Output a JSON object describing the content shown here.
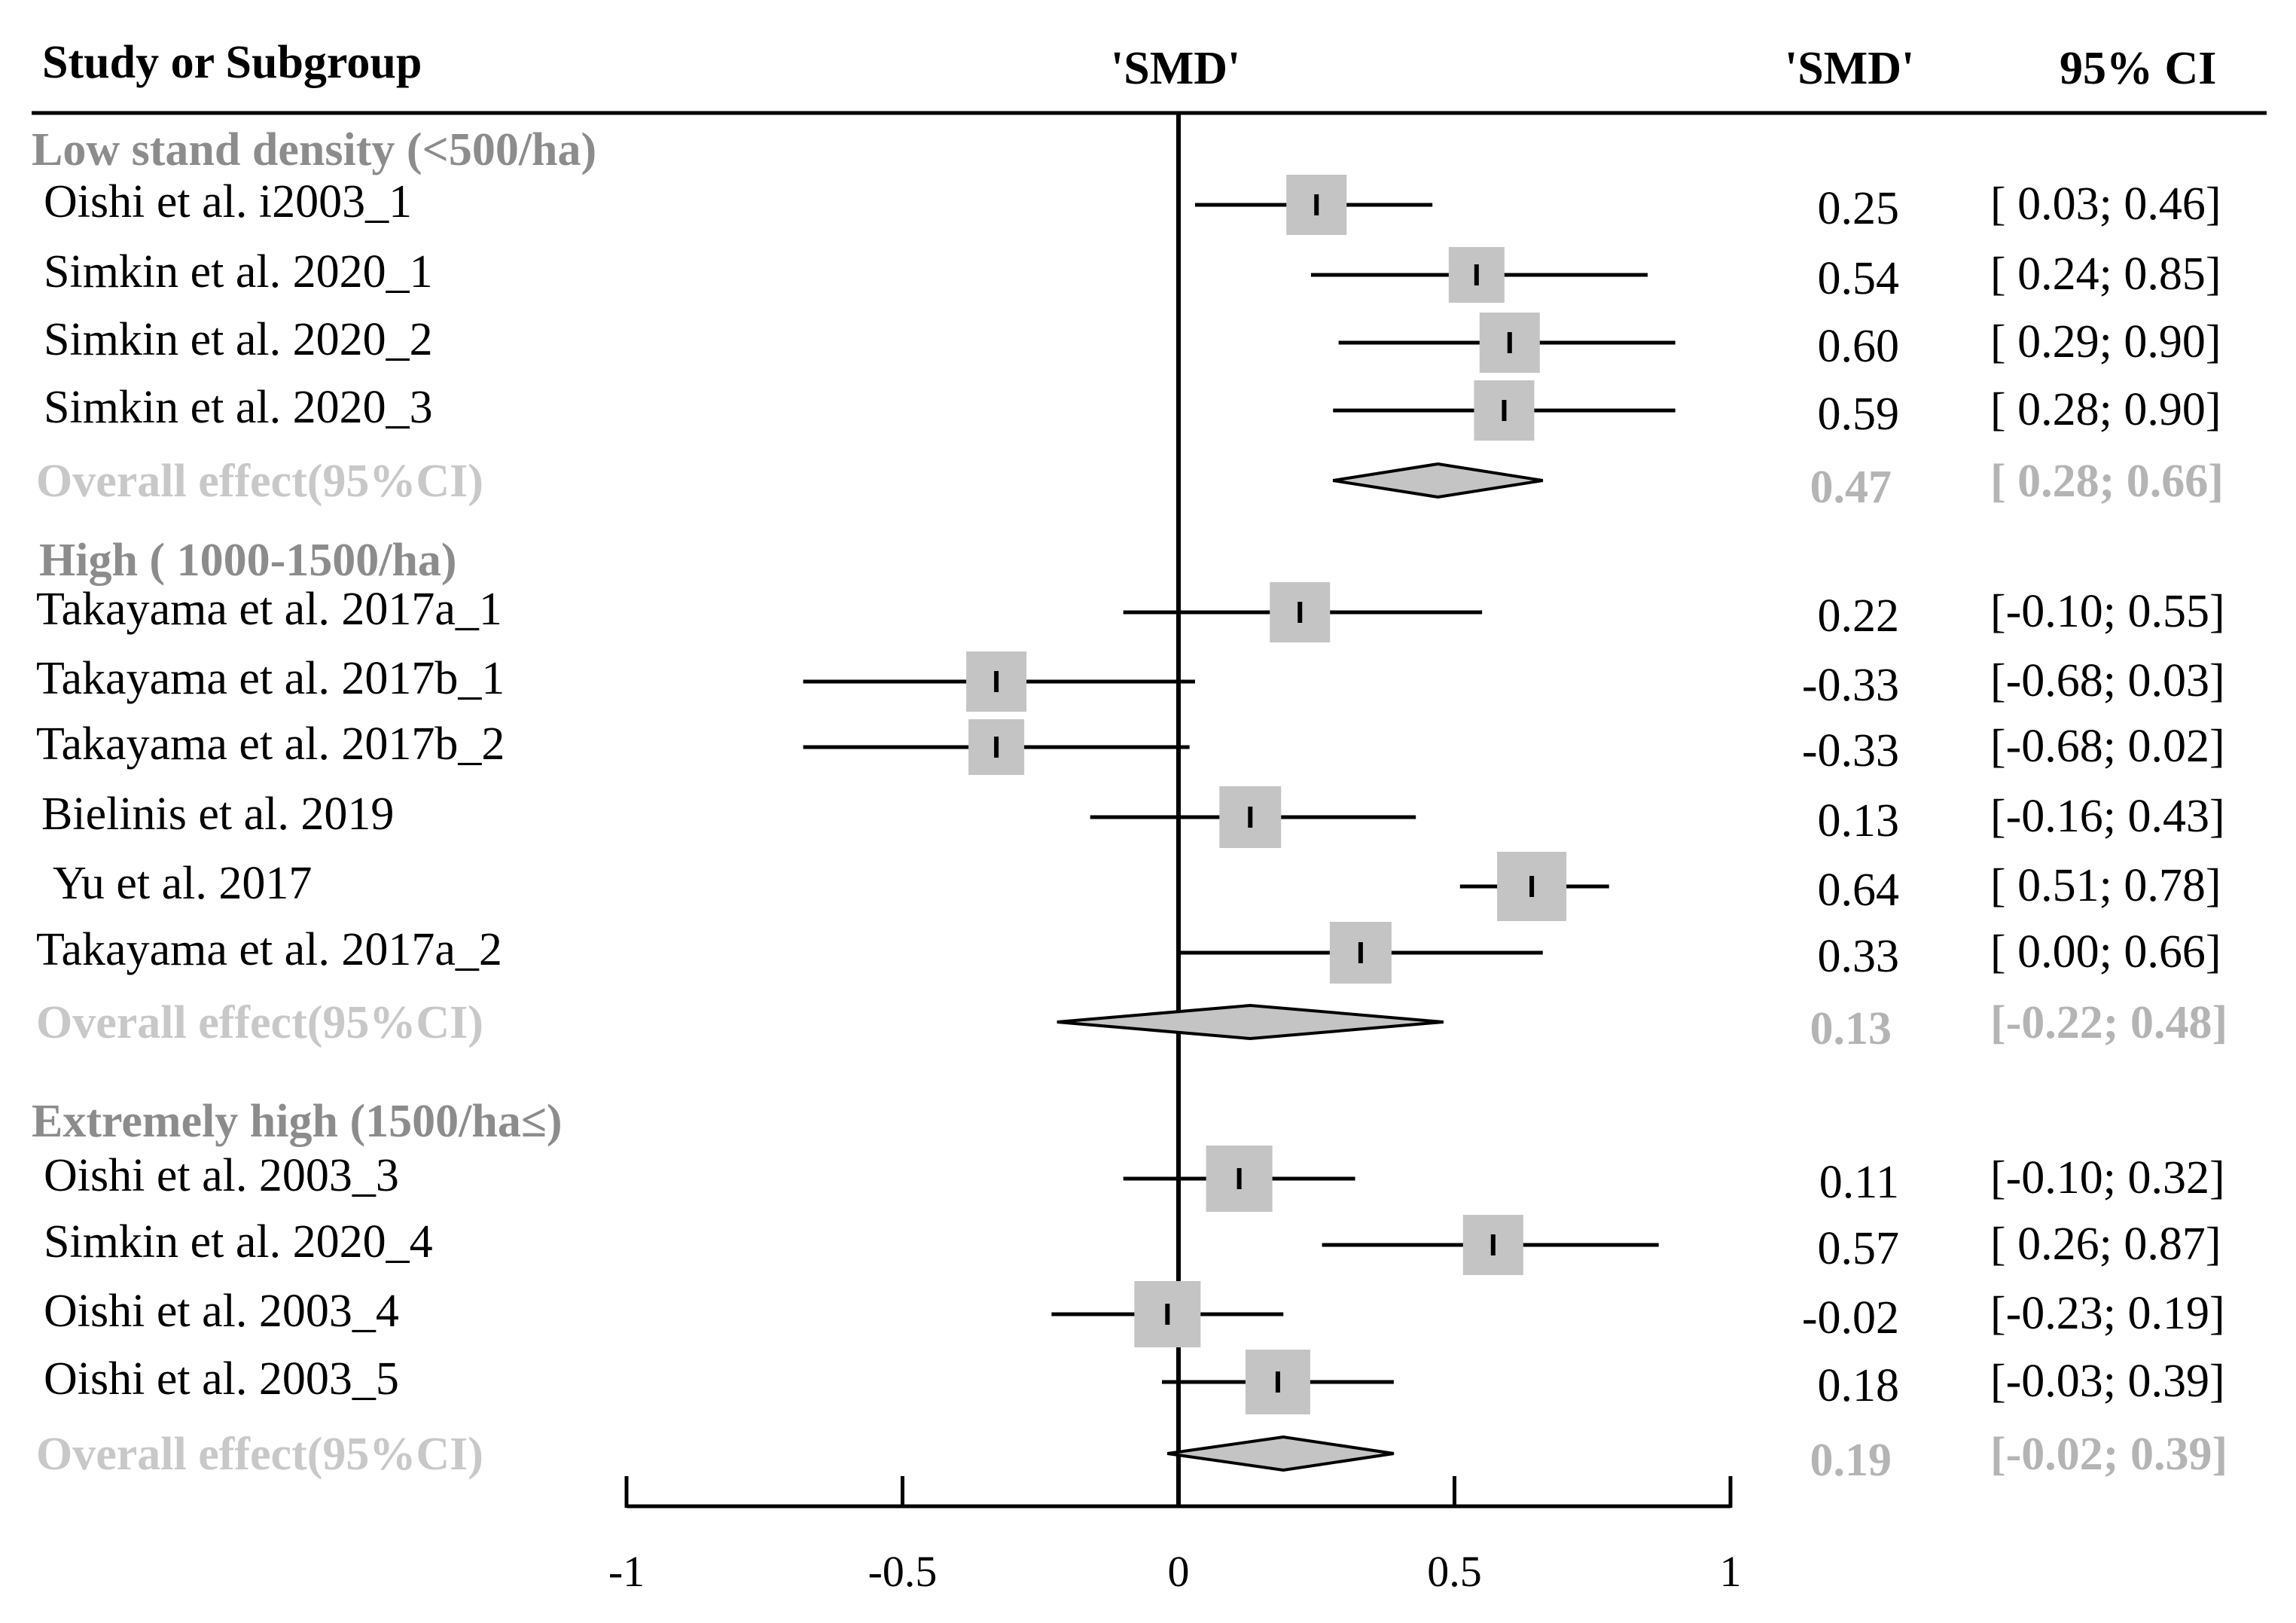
{
  "chart_data": {
    "type": "forest",
    "header": {
      "study_col": "Study or Subgroup",
      "plot_label": "'SMD'",
      "smd_col": "'SMD'",
      "ci_col": "95% CI"
    },
    "xlim": [
      -1,
      1
    ],
    "xticks": [
      -1,
      -0.5,
      0,
      0.5,
      1
    ],
    "xtick_labels": [
      "-1",
      "-0.5",
      "0",
      "0.5",
      "1"
    ],
    "groups": [
      {
        "label": "Low stand density (<500/ha)",
        "studies": [
          {
            "name": "Oishi et al. i2003_1",
            "smd": 0.25,
            "lo": 0.03,
            "hi": 0.46,
            "smd_text": "0.25",
            "ci_text": "[ 0.03; 0.46]"
          },
          {
            "name": "Simkin et al. 2020_1",
            "smd": 0.54,
            "lo": 0.24,
            "hi": 0.85,
            "smd_text": "0.54",
            "ci_text": "[ 0.24; 0.85]"
          },
          {
            "name": "Simkin et al. 2020_2",
            "smd": 0.6,
            "lo": 0.29,
            "hi": 0.9,
            "smd_text": "0.60",
            "ci_text": "[ 0.29; 0.90]"
          },
          {
            "name": "Simkin et al. 2020_3",
            "smd": 0.59,
            "lo": 0.28,
            "hi": 0.9,
            "smd_text": "0.59",
            "ci_text": "[ 0.28; 0.90]"
          }
        ],
        "overall": {
          "label": "Overall effect(95%CI)",
          "smd": 0.47,
          "lo": 0.28,
          "hi": 0.66,
          "smd_text": "0.47",
          "ci_text": "[ 0.28; 0.66]"
        }
      },
      {
        "label": "High ( 1000-1500/ha)",
        "studies": [
          {
            "name": "Takayama et al. 2017a_1",
            "smd": 0.22,
            "lo": -0.1,
            "hi": 0.55,
            "smd_text": "0.22",
            "ci_text": "[-0.10; 0.55]"
          },
          {
            "name": "Takayama et al. 2017b_1",
            "smd": -0.33,
            "lo": -0.68,
            "hi": 0.03,
            "smd_text": "-0.33",
            "ci_text": "[-0.68; 0.03]"
          },
          {
            "name": "Takayama et al. 2017b_2",
            "smd": -0.33,
            "lo": -0.68,
            "hi": 0.02,
            "smd_text": "-0.33",
            "ci_text": "[-0.68; 0.02]"
          },
          {
            "name": "Bielinis et al. 2019",
            "smd": 0.13,
            "lo": -0.16,
            "hi": 0.43,
            "smd_text": "0.13",
            "ci_text": "[-0.16; 0.43]"
          },
          {
            "name": "Yu et al. 2017",
            "smd": 0.64,
            "lo": 0.51,
            "hi": 0.78,
            "smd_text": "0.64",
            "ci_text": "[ 0.51; 0.78]"
          },
          {
            "name": "Takayama et al. 2017a_2",
            "smd": 0.33,
            "lo": 0.0,
            "hi": 0.66,
            "smd_text": "0.33",
            "ci_text": "[ 0.00; 0.66]"
          }
        ],
        "overall": {
          "label": "Overall effect(95%CI)",
          "smd": 0.13,
          "lo": -0.22,
          "hi": 0.48,
          "smd_text": "0.13",
          "ci_text": "[-0.22; 0.48]"
        }
      },
      {
        "label": "Extremely high (1500/ha≤)",
        "studies": [
          {
            "name": "Oishi et al. 2003_3",
            "smd": 0.11,
            "lo": -0.1,
            "hi": 0.32,
            "smd_text": "0.11",
            "ci_text": "[-0.10; 0.32]"
          },
          {
            "name": "Simkin et al. 2020_4",
            "smd": 0.57,
            "lo": 0.26,
            "hi": 0.87,
            "smd_text": "0.57",
            "ci_text": "[ 0.26; 0.87]"
          },
          {
            "name": "Oishi et al. 2003_4",
            "smd": -0.02,
            "lo": -0.23,
            "hi": 0.19,
            "smd_text": "-0.02",
            "ci_text": "[-0.23; 0.19]"
          },
          {
            "name": "Oishi et al. 2003_5",
            "smd": 0.18,
            "lo": -0.03,
            "hi": 0.39,
            "smd_text": "0.18",
            "ci_text": "[-0.03; 0.39]"
          }
        ],
        "overall": {
          "label": "Overall effect(95%CI)",
          "smd": 0.19,
          "lo": -0.02,
          "hi": 0.39,
          "smd_text": "0.19",
          "ci_text": "[-0.02; 0.39]"
        }
      }
    ]
  }
}
